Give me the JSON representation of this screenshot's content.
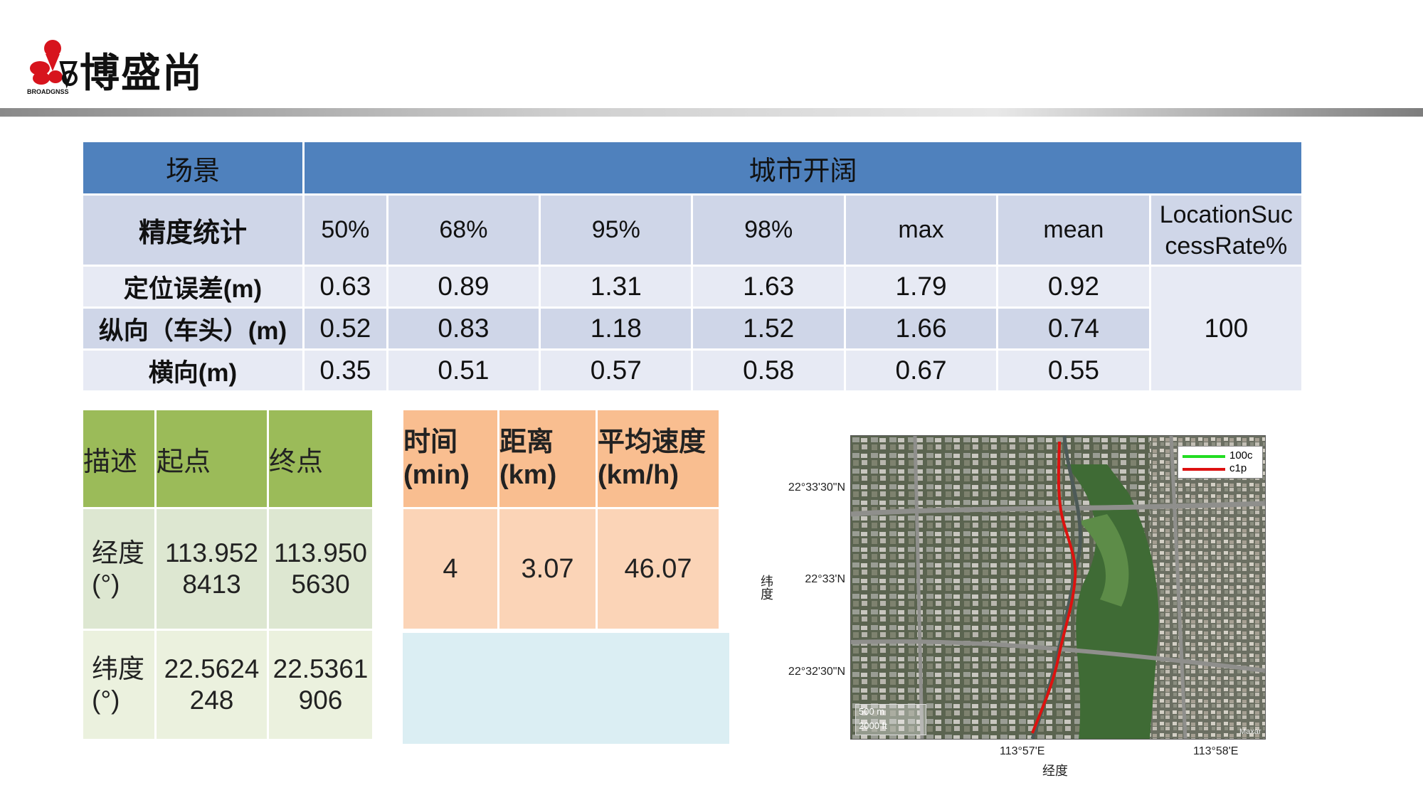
{
  "brand": {
    "name": "博盛尚",
    "logo_text": "BROADGNSS"
  },
  "accuracy_table": {
    "scene_label": "场景",
    "scene_value": "城市开阔",
    "stat_label": "精度统计",
    "columns": [
      "50%",
      "68%",
      "95%",
      "98%",
      "max",
      "mean"
    ],
    "success_col_label": "LocationSuccessRate%",
    "success_col_line1": "LocationSuc",
    "success_col_line2": "cessRate%",
    "rows": [
      {
        "label": "定位误差(m)",
        "values": [
          "0.63",
          "0.89",
          "1.31",
          "1.63",
          "1.79",
          "0.92"
        ]
      },
      {
        "label": "纵向（车头）(m)",
        "values": [
          "0.52",
          "0.83",
          "1.18",
          "1.52",
          "1.66",
          "0.74"
        ]
      },
      {
        "label": "横向(m)",
        "values": [
          "0.35",
          "0.51",
          "0.57",
          "0.58",
          "0.67",
          "0.55"
        ]
      }
    ],
    "success_value": "100"
  },
  "route_table": {
    "headers": [
      "描述",
      "起点",
      "终点"
    ],
    "rows": [
      {
        "label_line1": "经度",
        "label_line2": "(°)",
        "start_line1": "113.952",
        "start_line2": "8413",
        "end_line1": "113.950",
        "end_line2": "5630"
      },
      {
        "label_line1": "纬度",
        "label_line2": "(°)",
        "start_line1": "22.5624",
        "start_line2": "248",
        "end_line1": "22.5361",
        "end_line2": "906"
      }
    ]
  },
  "summary_table": {
    "headers": [
      {
        "line1": "时间",
        "line2": "(min)"
      },
      {
        "line1": "距离",
        "line2": "(km)"
      },
      {
        "line1": "平均速度",
        "line2": "(km/h)"
      }
    ],
    "values": [
      "4",
      "3.07",
      "46.07"
    ]
  },
  "map": {
    "legend": [
      {
        "name": "100c",
        "color": "#22dd22"
      },
      {
        "name": "c1p",
        "color": "#dd1111"
      }
    ],
    "y_ticks": [
      "22°33'30\"N",
      "22°33'N",
      "22°32'30\"N"
    ],
    "x_ticks": [
      "113°57'E",
      "113°58'E"
    ],
    "ylabel": "纬度",
    "xlabel": "经度",
    "scale_m": "500 m",
    "scale_ft": "2000 ft",
    "credit": "Maxar"
  }
}
